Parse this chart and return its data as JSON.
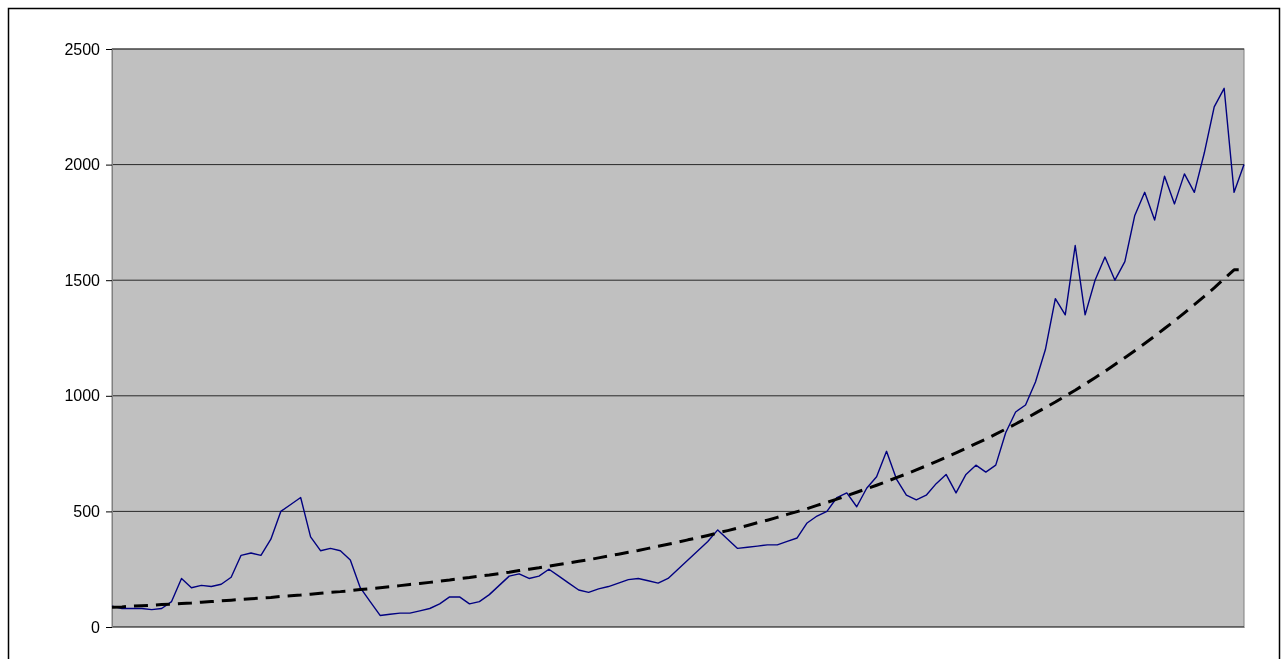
{
  "chart_data": {
    "type": "line",
    "grid": "y",
    "ylim": [
      0,
      2500
    ],
    "yticks": [
      0,
      500,
      1000,
      1500,
      2000,
      2500
    ],
    "categories": [
      null,
      null,
      null,
      null,
      null,
      null,
      null,
      null,
      null,
      null,
      null,
      null,
      null,
      null,
      null,
      null,
      null,
      null,
      null,
      null,
      null,
      null,
      null,
      null,
      null,
      null,
      null,
      null,
      null,
      null,
      null,
      null,
      null,
      null,
      null,
      null,
      null,
      null,
      null,
      null,
      null,
      null,
      null,
      null,
      null,
      null,
      null,
      null,
      null,
      null,
      null,
      null,
      null,
      null,
      null,
      null,
      null,
      null,
      null,
      null,
      null,
      null,
      null,
      null,
      null,
      null,
      null,
      null,
      null,
      null,
      null,
      null,
      null,
      null,
      null,
      null,
      null,
      null,
      null,
      null,
      null,
      null,
      null,
      null,
      null,
      null,
      null,
      null,
      null,
      null,
      null,
      null,
      null,
      null,
      null,
      null,
      null,
      null,
      null,
      null,
      null,
      null,
      null,
      null,
      null,
      null,
      null,
      null,
      null,
      null,
      null,
      null,
      null,
      null,
      null
    ],
    "series": [
      {
        "color": "#000080",
        "line_style": "solid",
        "values": [
          90,
          80,
          80,
          80,
          75,
          80,
          110,
          210,
          170,
          180,
          175,
          185,
          215,
          310,
          320,
          310,
          380,
          500,
          530,
          560,
          390,
          330,
          340,
          330,
          290,
          170,
          110,
          50,
          55,
          60,
          60,
          70,
          80,
          100,
          130,
          130,
          100,
          110,
          140,
          180,
          220,
          230,
          210,
          220,
          250,
          220,
          190,
          160,
          150,
          165,
          175,
          190,
          205,
          210,
          200,
          190,
          210,
          250,
          290,
          330,
          370,
          420,
          380,
          340,
          345,
          350,
          355,
          355,
          370,
          385,
          450,
          480,
          500,
          560,
          580,
          520,
          600,
          650,
          760,
          640,
          570,
          550,
          570,
          620,
          660,
          580,
          660,
          700,
          670,
          700,
          840,
          930,
          960,
          1060,
          1200,
          1420,
          1350,
          1650,
          1350,
          1500,
          1600,
          1500,
          1580,
          1780,
          1880,
          1760,
          1950,
          1830,
          1960,
          1880,
          2050,
          2250,
          2330,
          1880,
          2000
        ]
      },
      {
        "color": "#000000",
        "line_style": "dashed",
        "values": [
          85,
          87,
          90,
          92,
          94,
          97,
          99,
          102,
          104,
          107,
          110,
          113,
          116,
          119,
          122,
          125,
          128,
          132,
          135,
          138,
          142,
          146,
          150,
          153,
          157,
          162,
          166,
          170,
          174,
          179,
          184,
          188,
          193,
          198,
          203,
          209,
          214,
          220,
          225,
          231,
          237,
          244,
          250,
          256,
          263,
          270,
          277,
          284,
          291,
          299,
          307,
          315,
          323,
          331,
          340,
          349,
          358,
          367,
          377,
          386,
          396,
          407,
          417,
          428,
          439,
          451,
          462,
          474,
          487,
          499,
          512,
          526,
          539,
          553,
          568,
          583,
          598,
          613,
          629,
          646,
          662,
          680,
          697,
          715,
          734,
          753,
          773,
          793,
          813,
          834,
          856,
          878,
          901,
          925,
          949,
          973,
          999,
          1024,
          1051,
          1078,
          1106,
          1135,
          1165,
          1195,
          1226,
          1258,
          1291,
          1324,
          1359,
          1394,
          1430,
          1467,
          1506,
          1545,
          1545
        ]
      }
    ]
  }
}
